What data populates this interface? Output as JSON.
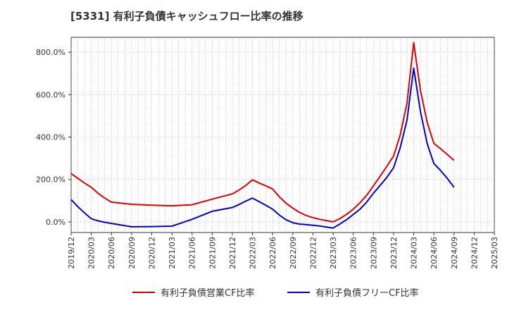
{
  "title": "[5331]  有利子負債キャッシュフロー比率の推移",
  "chart_data": {
    "type": "line",
    "title": "[5331]  有利子負債キャッシュフロー比率の推移",
    "xlabel": "",
    "ylabel": "",
    "x_ticks": [
      "2019/12",
      "2020/03",
      "2020/06",
      "2020/09",
      "2020/12",
      "2021/03",
      "2021/06",
      "2021/09",
      "2021/12",
      "2022/03",
      "2022/06",
      "2022/09",
      "2022/12",
      "2023/03",
      "2023/06",
      "2023/09",
      "2023/12",
      "2024/03",
      "2024/06",
      "2024/09",
      "2024/12",
      "2025/03"
    ],
    "y_ticks": [
      "0.0%",
      "200.0%",
      "400.0%",
      "600.0%",
      "800.0%"
    ],
    "ylim": [
      -50,
      870
    ],
    "grid": true,
    "legend_position": "bottom",
    "x": [
      "2019/12",
      "2020/01",
      "2020/02",
      "2020/03",
      "2020/04",
      "2020/05",
      "2020/06",
      "2020/09",
      "2020/12",
      "2021/03",
      "2021/06",
      "2021/09",
      "2021/12",
      "2022/01",
      "2022/02",
      "2022/03",
      "2022/04",
      "2022/05",
      "2022/06",
      "2022/07",
      "2022/08",
      "2022/09",
      "2022/10",
      "2022/11",
      "2022/12",
      "2023/01",
      "2023/02",
      "2023/03",
      "2023/04",
      "2023/05",
      "2023/06",
      "2023/07",
      "2023/08",
      "2023/09",
      "2023/10",
      "2023/11",
      "2023/12",
      "2024/01",
      "2024/02",
      "2024/03",
      "2024/04",
      "2024/05",
      "2024/06",
      "2024/07",
      "2024/08",
      "2024/09"
    ],
    "series": [
      {
        "name": "有利子負債営業CF比率",
        "color": "#dd0000",
        "values": [
          228,
          205,
          183,
          163,
          135,
          112,
          93,
          83,
          79,
          76,
          81,
          107,
          132,
          150,
          172,
          198,
          183,
          170,
          155,
          118,
          88,
          65,
          45,
          30,
          20,
          12,
          6,
          0,
          15,
          35,
          60,
          90,
          125,
          170,
          215,
          262,
          310,
          410,
          560,
          845,
          620,
          470,
          370,
          345,
          318,
          290
        ]
      },
      {
        "name": "有利子負債フリーCF比率",
        "color": "#0000cc",
        "values": [
          105,
          72,
          42,
          15,
          5,
          -2,
          -7,
          -23,
          -22,
          -20,
          12,
          50,
          68,
          82,
          98,
          112,
          95,
          78,
          60,
          32,
          10,
          -4,
          -10,
          -13,
          -16,
          -19,
          -24,
          -29,
          -10,
          10,
          35,
          60,
          93,
          135,
          172,
          210,
          255,
          350,
          480,
          725,
          520,
          370,
          275,
          242,
          205,
          163
        ]
      }
    ]
  }
}
